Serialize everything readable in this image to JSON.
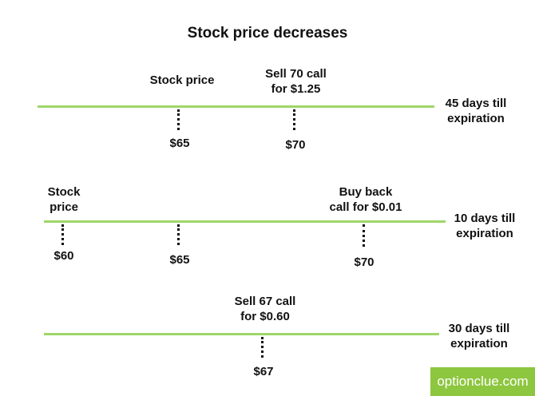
{
  "title": "Stock price decreases",
  "brand": "optionclue.com",
  "timelines": [
    {
      "expiration": [
        "45 days till",
        "expiration"
      ],
      "labels": [
        {
          "name": "stock-price-label",
          "lines": [
            "Stock price"
          ]
        },
        {
          "name": "action-label",
          "lines": [
            "Sell 70 call",
            "for $1.25"
          ]
        }
      ],
      "prices": [
        "$65",
        "$70"
      ]
    },
    {
      "expiration": [
        "10 days till",
        "expiration"
      ],
      "labels": [
        {
          "name": "stock-price-label",
          "lines": [
            "Stock",
            "price"
          ]
        },
        {
          "name": "action-label",
          "lines": [
            "Buy back",
            "call for $0.01"
          ]
        }
      ],
      "prices": [
        "$60",
        "$65",
        "$70"
      ]
    },
    {
      "expiration": [
        "30 days till",
        "expiration"
      ],
      "labels": [
        {
          "name": "action-label",
          "lines": [
            "Sell 67 call",
            "for $0.60"
          ]
        }
      ],
      "prices": [
        "$67"
      ]
    }
  ]
}
